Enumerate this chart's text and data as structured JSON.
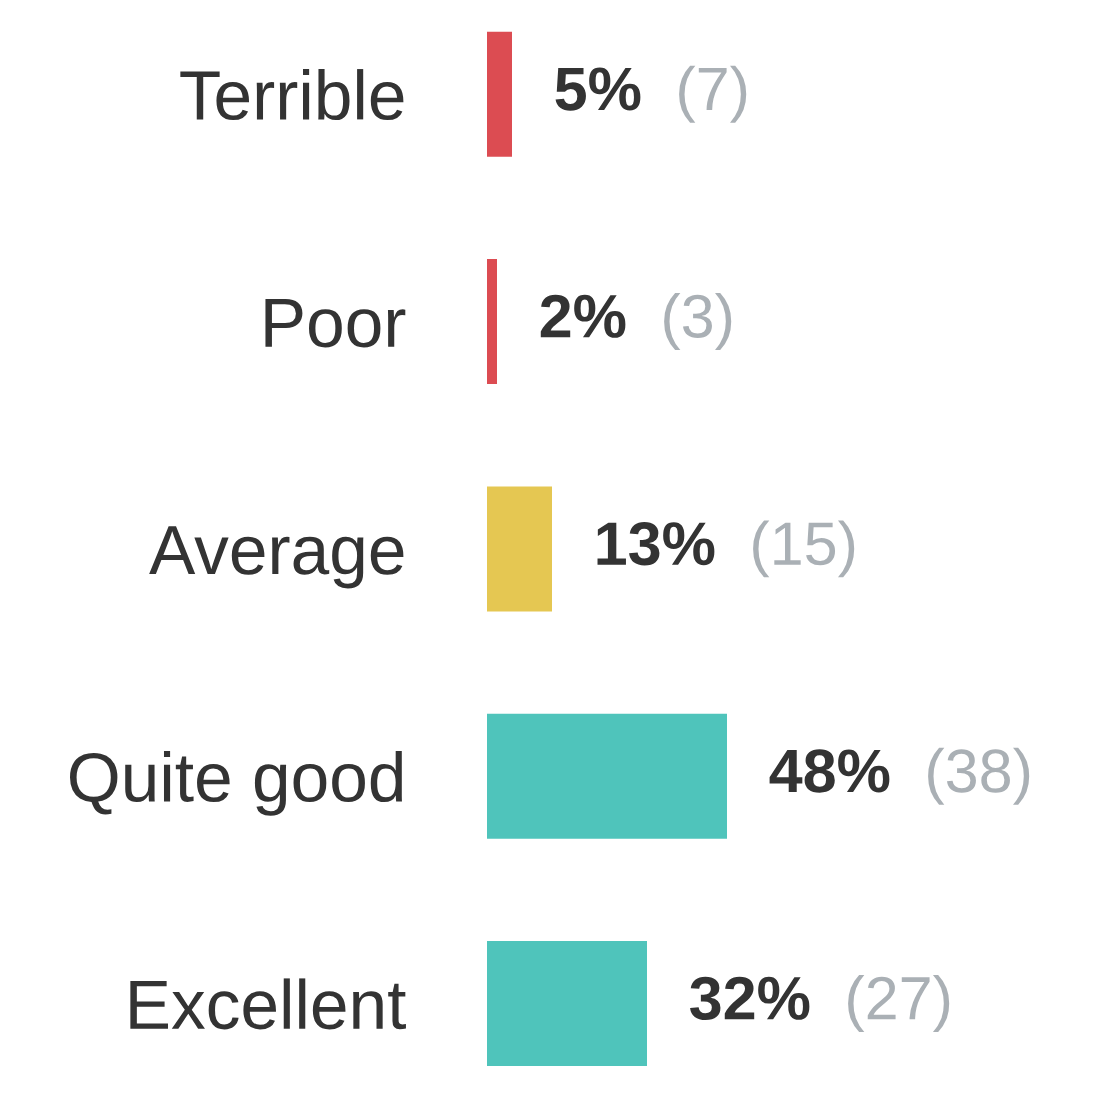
{
  "chart_data": {
    "type": "bar",
    "orientation": "horizontal",
    "categories": [
      "Terrible",
      "Poor",
      "Average",
      "Quite good",
      "Excellent"
    ],
    "values": [
      5,
      2,
      13,
      48,
      32
    ],
    "colors": [
      "#dc4c52",
      "#dc4c52",
      "#e5c752",
      "#4fc4bb",
      "#4fc4bb"
    ],
    "value_labels": [
      "5%",
      "2%",
      "13%",
      "48%",
      "32%"
    ],
    "annotations": [
      "(7)",
      "(3)",
      "(15)",
      "(38)",
      "(27)"
    ],
    "tick_labels": "y",
    "grid": false,
    "legend": false
  }
}
